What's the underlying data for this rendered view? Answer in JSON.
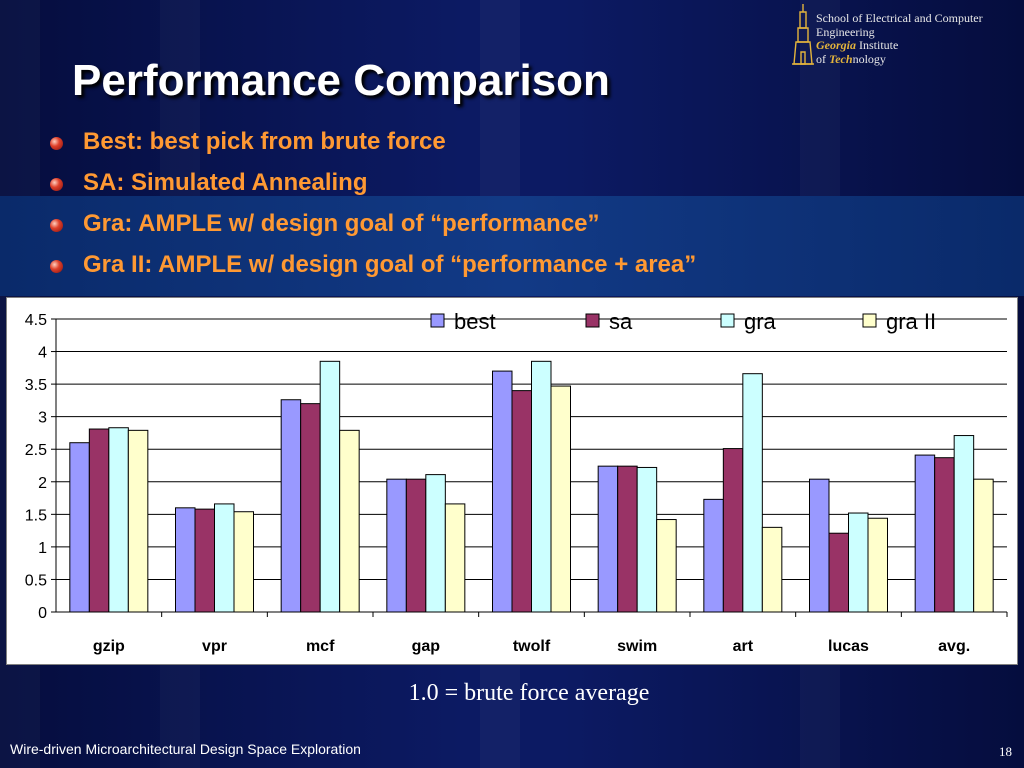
{
  "slide": {
    "title": "Performance Comparison",
    "footer": "Wire-driven Microarchitectural Design Space Exploration",
    "page_number": "18",
    "note": "1.0 = brute force average"
  },
  "logo": {
    "line1": "School of Electrical and Computer",
    "line2": "Engineering",
    "line3_gold": "Georgia",
    "line3_rest": " Institute",
    "line4_pre": "of ",
    "line4_gold": "Tech",
    "line4_rest": "nology"
  },
  "bullets": [
    {
      "text": "Best:  best pick from brute force",
      "color": "#ff9933"
    },
    {
      "text": "SA:  Simulated Annealing",
      "color": "#ff9933"
    },
    {
      "text": "Gra: AMPLE w/ design goal of “performance”",
      "color": "#ff9933"
    },
    {
      "text": "Gra II: AMPLE w/ design goal of “performance + area”",
      "color": "#ff9933"
    }
  ],
  "chart_data": {
    "type": "bar",
    "categories": [
      "gzip",
      "vpr",
      "mcf",
      "gap",
      "twolf",
      "swim",
      "art",
      "lucas",
      "avg."
    ],
    "series": [
      {
        "name": "best",
        "color": "#9999ff",
        "values": [
          2.6,
          1.6,
          3.26,
          2.04,
          3.7,
          2.24,
          1.73,
          2.04,
          2.41
        ]
      },
      {
        "name": "sa",
        "color": "#993366",
        "values": [
          2.81,
          1.58,
          3.2,
          2.04,
          3.4,
          2.24,
          2.51,
          1.21,
          2.37
        ]
      },
      {
        "name": "gra",
        "color": "#ccffff",
        "values": [
          2.83,
          1.66,
          3.85,
          2.11,
          3.85,
          2.22,
          3.66,
          1.52,
          2.71
        ]
      },
      {
        "name": "gra II",
        "color": "#ffffcc",
        "values": [
          2.79,
          1.54,
          2.79,
          1.66,
          3.47,
          1.42,
          1.3,
          1.44,
          2.04
        ]
      }
    ],
    "yticks": [
      "0",
      "0.5",
      "1",
      "1.5",
      "2",
      "2.5",
      "3",
      "3.5",
      "4",
      "4.5"
    ],
    "ylim": [
      0,
      4.5
    ],
    "grid": true,
    "legend_position": "top"
  }
}
